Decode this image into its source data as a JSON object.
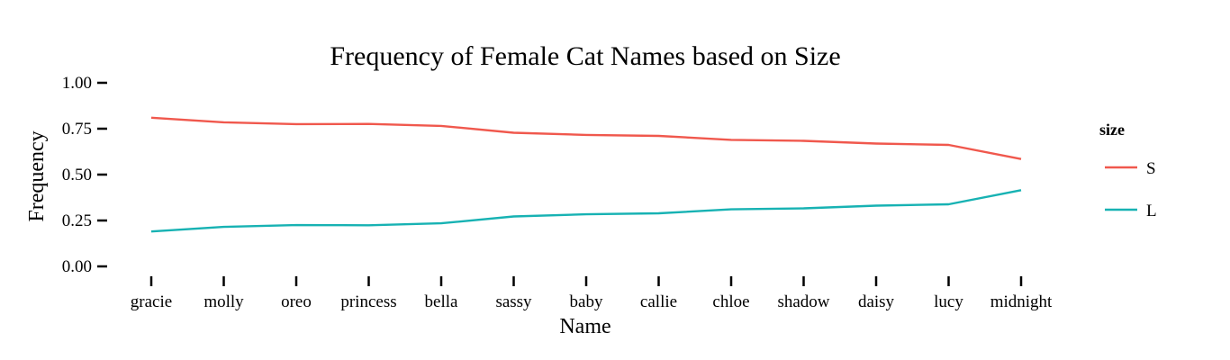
{
  "chart_data": {
    "type": "line",
    "title": "Frequency of Female Cat Names based on Size",
    "xlabel": "Name",
    "ylabel": "Frequency",
    "categories": [
      "gracie",
      "molly",
      "oreo",
      "princess",
      "bella",
      "sassy",
      "baby",
      "callie",
      "chloe",
      "shadow",
      "daisy",
      "lucy",
      "midnight"
    ],
    "ylim": [
      0,
      1
    ],
    "yticks": [
      "0.00",
      "0.25",
      "0.50",
      "0.75",
      "1.00"
    ],
    "grid": false,
    "legend": {
      "title": "size",
      "position": "right"
    },
    "series": [
      {
        "name": "S",
        "color": "#F0584D",
        "values": [
          0.81,
          0.785,
          0.775,
          0.776,
          0.765,
          0.728,
          0.716,
          0.711,
          0.689,
          0.684,
          0.669,
          0.662,
          0.585
        ]
      },
      {
        "name": "L",
        "color": "#17B2B3",
        "values": [
          0.19,
          0.215,
          0.225,
          0.224,
          0.235,
          0.272,
          0.284,
          0.289,
          0.311,
          0.316,
          0.331,
          0.338,
          0.415
        ]
      }
    ]
  }
}
